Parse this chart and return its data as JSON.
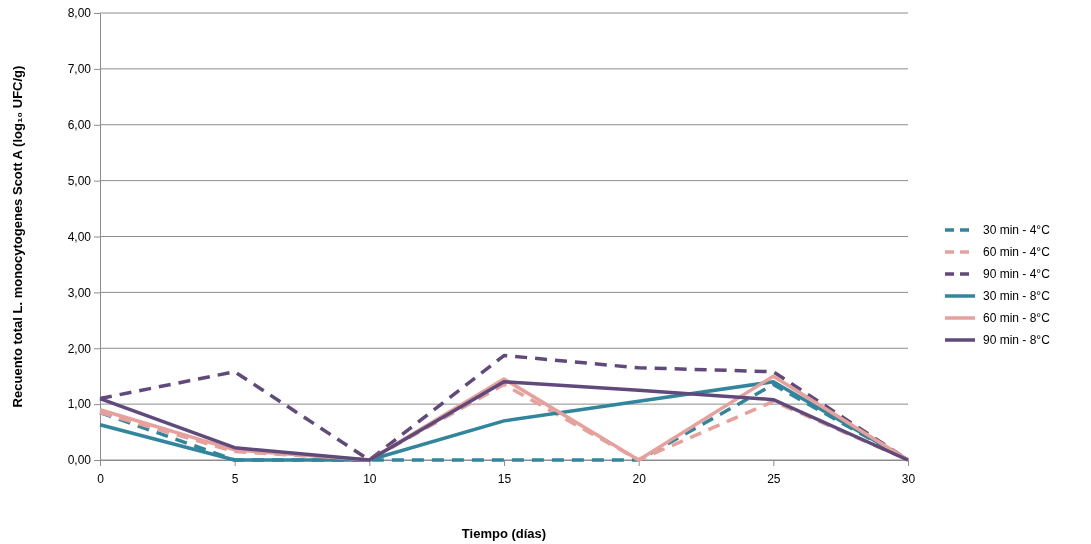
{
  "chart_data": {
    "type": "line",
    "xlabel": "Tiempo (días)",
    "ylabel": "Recuento total L. monocytogenes Scott A (log₁₀ UFC/g)",
    "x": [
      0,
      5,
      10,
      15,
      20,
      25,
      30
    ],
    "series": [
      {
        "name": "30 min - 4°C",
        "color": "#31859c",
        "line_style": "dashed",
        "values": [
          0.85,
          0,
          0,
          0,
          0,
          1.35,
          0
        ]
      },
      {
        "name": "60 min - 4°C",
        "color": "#e6a19c",
        "line_style": "dashed",
        "values": [
          0.85,
          0.15,
          0,
          1.35,
          0,
          1.05,
          0
        ]
      },
      {
        "name": "90 min - 4°C",
        "color": "#604a7b",
        "line_style": "dashed",
        "values": [
          1.1,
          1.58,
          0,
          1.87,
          1.65,
          1.58,
          0
        ]
      },
      {
        "name": "30 min - 8°C",
        "color": "#31859c",
        "line_style": "solid",
        "values": [
          0.63,
          0,
          0,
          0.7,
          1.05,
          1.4,
          0
        ]
      },
      {
        "name": "60 min - 8°C",
        "color": "#e6a19c",
        "line_style": "solid",
        "values": [
          0.9,
          0.18,
          0,
          1.45,
          0,
          1.5,
          0
        ]
      },
      {
        "name": "90 min - 8°C",
        "color": "#604a7b",
        "line_style": "solid",
        "values": [
          1.1,
          0.22,
          0,
          1.4,
          1.25,
          1.08,
          0
        ]
      }
    ],
    "xlim": [
      0,
      30
    ],
    "xticks": [
      0,
      5,
      10,
      15,
      20,
      25,
      30
    ],
    "ylim": [
      0,
      8
    ],
    "yticks": [
      {
        "value": 0,
        "label": "0,00"
      },
      {
        "value": 1,
        "label": "1,00"
      },
      {
        "value": 2,
        "label": "2,00"
      },
      {
        "value": 3,
        "label": "3,00"
      },
      {
        "value": 4,
        "label": "4,00"
      },
      {
        "value": 5,
        "label": "5,00"
      },
      {
        "value": 6,
        "label": "6,00"
      },
      {
        "value": 7,
        "label": "7,00"
      },
      {
        "value": 8,
        "label": "8,00"
      }
    ],
    "grid": "y",
    "legend": "right",
    "marker": "none"
  }
}
